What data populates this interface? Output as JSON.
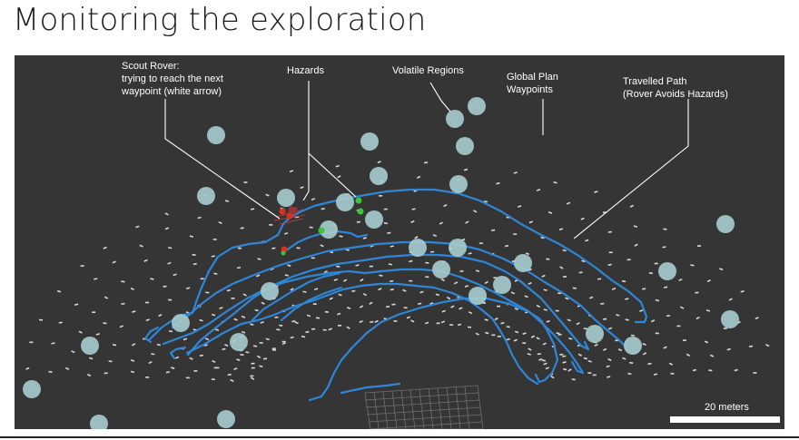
{
  "slide": {
    "title": "Monitoring the exploration"
  },
  "annotations": {
    "scout_rover": [
      "Scout Rover:",
      "trying to reach the next",
      "waypoint (white arrow)"
    ],
    "hazards": "Hazards",
    "volatile_regions": "Volatile Regions",
    "global_plan": [
      "Global Plan",
      "Waypoints"
    ],
    "travelled_path": [
      "Travelled Path",
      "(Rover Avoids Hazards)"
    ]
  },
  "scale_bar": {
    "label": "20 meters"
  },
  "colors": {
    "background": "#353535",
    "path": "#2f86d6",
    "volatile": "#a9cdcf",
    "hazard_red": "#d9331f",
    "hazard_green": "#3cc43a",
    "waypoint": "#d8d8d8"
  }
}
